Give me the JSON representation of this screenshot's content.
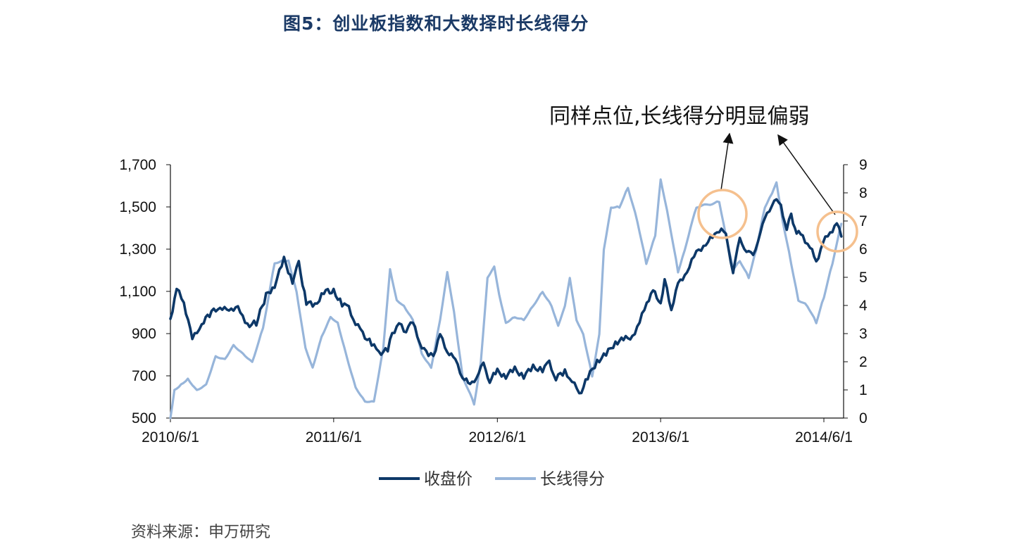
{
  "title": "图5：创业板指数和大数择时长线得分",
  "annotation": "同样点位,长线得分明显偏弱",
  "source": "资料来源：申万研究",
  "chart_data": {
    "type": "line",
    "x_ticks": [
      "2010/6/1",
      "2011/6/1",
      "2012/6/1",
      "2013/6/1",
      "2014/6/1"
    ],
    "y_left": {
      "min": 500,
      "max": 1700,
      "ticks": [
        "500",
        "700",
        "900",
        "1,100",
        "1,300",
        "1,500",
        "1,700"
      ]
    },
    "y_right": {
      "min": 0,
      "max": 9,
      "ticks": [
        "0",
        "1",
        "2",
        "3",
        "4",
        "5",
        "6",
        "7",
        "8",
        "9"
      ]
    },
    "legend_position": "bottom",
    "series": [
      {
        "name": "收盘价",
        "axis": "left",
        "color": "#0d3868",
        "points": [
          [
            "2010/6/1",
            970
          ],
          [
            "2010/6/15",
            1110
          ],
          [
            "2010/7/1",
            1050
          ],
          [
            "2010/7/20",
            870
          ],
          [
            "2010/8/10",
            950
          ],
          [
            "2010/9/1",
            1000
          ],
          [
            "2010/9/20",
            1030
          ],
          [
            "2010/10/10",
            1000
          ],
          [
            "2010/10/30",
            1040
          ],
          [
            "2010/11/15",
            940
          ],
          [
            "2010/12/10",
            950
          ],
          [
            "2011/1/1",
            1080
          ],
          [
            "2011/1/20",
            1130
          ],
          [
            "2011/2/10",
            1250
          ],
          [
            "2011/3/1",
            1150
          ],
          [
            "2011/3/15",
            1230
          ],
          [
            "2011/4/1",
            1050
          ],
          [
            "2011/4/20",
            1030
          ],
          [
            "2011/5/10",
            1100
          ],
          [
            "2011/6/1",
            1100
          ],
          [
            "2011/6/20",
            1040
          ],
          [
            "2011/7/5",
            1020
          ],
          [
            "2011/7/20",
            950
          ],
          [
            "2011/8/5",
            900
          ],
          [
            "2011/8/25",
            850
          ],
          [
            "2011/9/10",
            810
          ],
          [
            "2011/9/30",
            820
          ],
          [
            "2011/10/10",
            900
          ],
          [
            "2011/10/25",
            950
          ],
          [
            "2011/11/5",
            910
          ],
          [
            "2011/11/25",
            950
          ],
          [
            "2011/12/10",
            860
          ],
          [
            "2011/12/30",
            790
          ],
          [
            "2012/1/10",
            800
          ],
          [
            "2012/1/25",
            890
          ],
          [
            "2012/2/10",
            820
          ],
          [
            "2012/2/28",
            770
          ],
          [
            "2012/3/15",
            700
          ],
          [
            "2012/4/1",
            650
          ],
          [
            "2012/4/15",
            700
          ],
          [
            "2012/5/1",
            750
          ],
          [
            "2012/5/15",
            680
          ],
          [
            "2012/6/1",
            720
          ],
          [
            "2012/6/20",
            700
          ],
          [
            "2012/7/10",
            730
          ],
          [
            "2012/7/30",
            700
          ],
          [
            "2012/8/20",
            740
          ],
          [
            "2012/9/10",
            730
          ],
          [
            "2012/9/25",
            760
          ],
          [
            "2012/10/10",
            690
          ],
          [
            "2012/10/30",
            720
          ],
          [
            "2012/11/15",
            680
          ],
          [
            "2012/12/1",
            610
          ],
          [
            "2012/12/20",
            690
          ],
          [
            "2013/1/10",
            770
          ],
          [
            "2013/1/30",
            800
          ],
          [
            "2013/2/20",
            860
          ],
          [
            "2013/3/10",
            870
          ],
          [
            "2013/3/30",
            890
          ],
          [
            "2013/4/15",
            950
          ],
          [
            "2013/5/1",
            1050
          ],
          [
            "2013/5/15",
            1100
          ],
          [
            "2013/6/1",
            1050
          ],
          [
            "2013/6/10",
            1150
          ],
          [
            "2013/6/25",
            1020
          ],
          [
            "2013/7/10",
            1130
          ],
          [
            "2013/7/30",
            1200
          ],
          [
            "2013/8/20",
            1280
          ],
          [
            "2013/9/10",
            1330
          ],
          [
            "2013/9/30",
            1360
          ],
          [
            "2013/10/15",
            1410
          ],
          [
            "2013/10/25",
            1360
          ],
          [
            "2013/11/10",
            1200
          ],
          [
            "2013/11/25",
            1340
          ],
          [
            "2013/12/10",
            1300
          ],
          [
            "2013/12/25",
            1260
          ],
          [
            "2014/1/10",
            1390
          ],
          [
            "2014/1/25",
            1460
          ],
          [
            "2014/2/10",
            1540
          ],
          [
            "2014/2/25",
            1500
          ],
          [
            "2014/3/10",
            1400
          ],
          [
            "2014/3/20",
            1460
          ],
          [
            "2014/4/1",
            1380
          ],
          [
            "2014/4/15",
            1360
          ],
          [
            "2014/5/1",
            1310
          ],
          [
            "2014/5/15",
            1240
          ],
          [
            "2014/5/30",
            1330
          ],
          [
            "2014/6/15",
            1380
          ],
          [
            "2014/6/30",
            1420
          ],
          [
            "2014/7/10",
            1360
          ]
        ]
      },
      {
        "name": "长线得分",
        "axis": "right",
        "color": "#97b5da",
        "points": [
          [
            "2010/6/1",
            0
          ],
          [
            "2010/6/10",
            1.0
          ],
          [
            "2010/6/25",
            1.2
          ],
          [
            "2010/7/10",
            1.4
          ],
          [
            "2010/7/30",
            1.0
          ],
          [
            "2010/8/20",
            1.2
          ],
          [
            "2010/9/10",
            2.2
          ],
          [
            "2010/10/1",
            2.1
          ],
          [
            "2010/10/20",
            2.6
          ],
          [
            "2010/11/10",
            2.3
          ],
          [
            "2010/12/1",
            2.0
          ],
          [
            "2010/12/25",
            3.2
          ],
          [
            "2011/1/20",
            5.5
          ],
          [
            "2011/2/5",
            5.6
          ],
          [
            "2011/2/20",
            5.6
          ],
          [
            "2011/3/10",
            4.5
          ],
          [
            "2011/3/30",
            2.5
          ],
          [
            "2011/4/15",
            1.8
          ],
          [
            "2011/5/5",
            2.9
          ],
          [
            "2011/5/25",
            3.6
          ],
          [
            "2011/6/10",
            3.4
          ],
          [
            "2011/6/30",
            2.2
          ],
          [
            "2011/7/20",
            1.1
          ],
          [
            "2011/8/10",
            0.6
          ],
          [
            "2011/8/30",
            0.6
          ],
          [
            "2011/9/20",
            2.5
          ],
          [
            "2011/10/5",
            5.3
          ],
          [
            "2011/10/20",
            4.2
          ],
          [
            "2011/11/5",
            4.0
          ],
          [
            "2011/11/25",
            3.5
          ],
          [
            "2011/12/15",
            2.3
          ],
          [
            "2012/1/5",
            1.8
          ],
          [
            "2012/1/25",
            3.5
          ],
          [
            "2012/2/10",
            5.2
          ],
          [
            "2012/2/25",
            3.8
          ],
          [
            "2012/3/15",
            1.5
          ],
          [
            "2012/4/10",
            0.5
          ],
          [
            "2012/4/25",
            2.0
          ],
          [
            "2012/5/10",
            5.0
          ],
          [
            "2012/5/25",
            5.4
          ],
          [
            "2012/6/5",
            4.4
          ],
          [
            "2012/6/20",
            3.4
          ],
          [
            "2012/7/10",
            3.6
          ],
          [
            "2012/7/30",
            3.5
          ],
          [
            "2012/8/20",
            4.0
          ],
          [
            "2012/9/10",
            4.5
          ],
          [
            "2012/9/30",
            4.0
          ],
          [
            "2012/10/15",
            3.3
          ],
          [
            "2012/10/30",
            4.0
          ],
          [
            "2012/11/10",
            5.0
          ],
          [
            "2012/11/25",
            3.5
          ],
          [
            "2012/12/10",
            3.0
          ],
          [
            "2012/12/30",
            1.5
          ],
          [
            "2013/1/15",
            3.0
          ],
          [
            "2013/1/25",
            6.0
          ],
          [
            "2013/2/10",
            7.5
          ],
          [
            "2013/3/1",
            7.5
          ],
          [
            "2013/3/20",
            8.2
          ],
          [
            "2013/4/10",
            7.0
          ],
          [
            "2013/4/30",
            5.5
          ],
          [
            "2013/5/20",
            6.5
          ],
          [
            "2013/6/1",
            8.5
          ],
          [
            "2013/6/20",
            7.0
          ],
          [
            "2013/7/10",
            5.2
          ],
          [
            "2013/7/25",
            6.0
          ],
          [
            "2013/8/20",
            7.5
          ],
          [
            "2013/9/20",
            7.6
          ],
          [
            "2013/10/10",
            7.7
          ],
          [
            "2013/10/25",
            6.5
          ],
          [
            "2013/11/10",
            5.3
          ],
          [
            "2013/11/25",
            5.6
          ],
          [
            "2013/12/15",
            5.0
          ],
          [
            "2014/1/1",
            6.0
          ],
          [
            "2014/1/20",
            7.5
          ],
          [
            "2014/2/5",
            8.0
          ],
          [
            "2014/2/15",
            8.4
          ],
          [
            "2014/3/1",
            7.0
          ],
          [
            "2014/3/20",
            5.5
          ],
          [
            "2014/4/5",
            4.2
          ],
          [
            "2014/4/25",
            4.0
          ],
          [
            "2014/5/15",
            3.4
          ],
          [
            "2014/6/1",
            4.3
          ],
          [
            "2014/6/20",
            5.5
          ],
          [
            "2014/7/10",
            6.9
          ]
        ]
      }
    ]
  }
}
